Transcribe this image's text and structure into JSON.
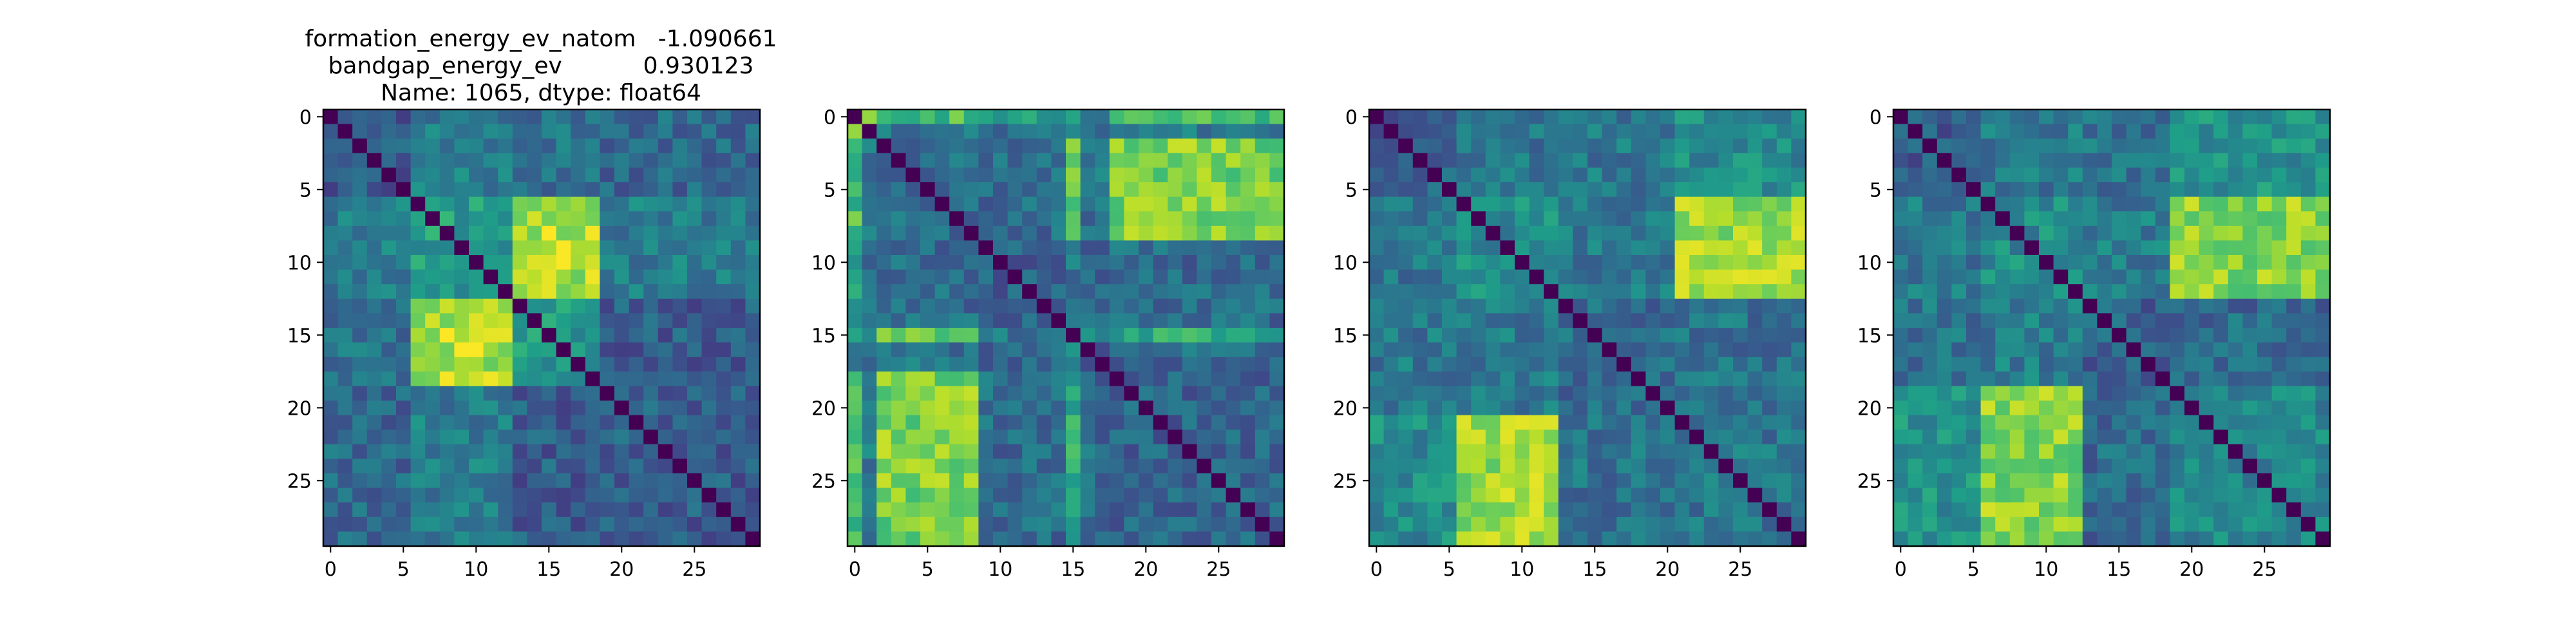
{
  "figure": {
    "title_lines": [
      "formation_energy_ev_natom   -1.090661",
      "bandgap_energy_ev           0.930123",
      "Name: 1065, dtype: float64"
    ]
  },
  "colors": {
    "viridis": [
      "#440154",
      "#482878",
      "#3e4a89",
      "#31688e",
      "#26828e",
      "#1f9e89",
      "#35b779",
      "#6ece58",
      "#b5de2b",
      "#fde725"
    ],
    "frame": "#000000"
  },
  "chart_data": [
    {
      "type": "heatmap",
      "title": "formation_energy_ev_natom   -1.090661\nbandgap_energy_ev           0.930123\nName: 1065, dtype: float64",
      "size": 30,
      "xticks": [
        0,
        5,
        10,
        15,
        20,
        25
      ],
      "yticks": [
        0,
        5,
        10,
        15,
        20,
        25
      ],
      "xlim": [
        -0.5,
        29.5
      ],
      "ylim": [
        29.5,
        -0.5
      ],
      "colormap": "viridis",
      "groups": [
        [
          0,
          5
        ],
        [
          6,
          12
        ],
        [
          13,
          18
        ],
        [
          19,
          29
        ]
      ],
      "group_base": [
        [
          0.28,
          0.42,
          0.38,
          0.34
        ],
        [
          0.42,
          0.55,
          0.88,
          0.42
        ],
        [
          0.38,
          0.88,
          0.55,
          0.3
        ],
        [
          0.34,
          0.42,
          0.3,
          0.3
        ]
      ]
    },
    {
      "type": "heatmap",
      "title": "",
      "size": 30,
      "xticks": [
        0,
        5,
        10,
        15,
        20,
        25
      ],
      "yticks": [
        0,
        5,
        10,
        15,
        20,
        25
      ],
      "xlim": [
        -0.5,
        29.5
      ],
      "ylim": [
        29.5,
        -0.5
      ],
      "colormap": "viridis",
      "groups": [
        [
          0,
          0
        ],
        [
          1,
          1
        ],
        [
          2,
          8
        ],
        [
          9,
          14
        ],
        [
          15,
          15
        ],
        [
          16,
          17
        ],
        [
          18,
          29
        ]
      ],
      "group_base": [
        [
          0.0,
          0.8,
          0.7,
          0.55,
          0.6,
          0.4,
          0.7
        ],
        [
          0.8,
          0.0,
          0.4,
          0.4,
          0.4,
          0.4,
          0.4
        ],
        [
          0.7,
          0.4,
          0.35,
          0.35,
          0.8,
          0.38,
          0.8
        ],
        [
          0.55,
          0.4,
          0.35,
          0.3,
          0.4,
          0.35,
          0.35
        ],
        [
          0.6,
          0.4,
          0.8,
          0.4,
          0.0,
          0.55,
          0.6
        ],
        [
          0.4,
          0.4,
          0.38,
          0.35,
          0.55,
          0.3,
          0.35
        ],
        [
          0.7,
          0.4,
          0.8,
          0.35,
          0.6,
          0.35,
          0.32
        ]
      ]
    },
    {
      "type": "heatmap",
      "title": "",
      "size": 30,
      "xticks": [
        0,
        5,
        10,
        15,
        20,
        25
      ],
      "yticks": [
        0,
        5,
        10,
        15,
        20,
        25
      ],
      "xlim": [
        -0.5,
        29.5
      ],
      "ylim": [
        29.5,
        -0.5
      ],
      "colormap": "viridis",
      "groups": [
        [
          0,
          5
        ],
        [
          6,
          12
        ],
        [
          13,
          20
        ],
        [
          21,
          29
        ]
      ],
      "group_base": [
        [
          0.3,
          0.4,
          0.4,
          0.48
        ],
        [
          0.4,
          0.48,
          0.4,
          0.85
        ],
        [
          0.4,
          0.4,
          0.35,
          0.38
        ],
        [
          0.48,
          0.85,
          0.38,
          0.4
        ]
      ]
    },
    {
      "type": "heatmap",
      "title": "",
      "size": 30,
      "xticks": [
        0,
        5,
        10,
        15,
        20,
        25
      ],
      "yticks": [
        0,
        5,
        10,
        15,
        20,
        25
      ],
      "xlim": [
        -0.5,
        29.5
      ],
      "ylim": [
        29.5,
        -0.5
      ],
      "colormap": "viridis",
      "groups": [
        [
          0,
          5
        ],
        [
          6,
          12
        ],
        [
          13,
          18
        ],
        [
          19,
          29
        ]
      ],
      "group_base": [
        [
          0.3,
          0.4,
          0.38,
          0.5
        ],
        [
          0.4,
          0.48,
          0.42,
          0.82
        ],
        [
          0.38,
          0.42,
          0.32,
          0.35
        ],
        [
          0.5,
          0.82,
          0.35,
          0.45
        ]
      ]
    }
  ]
}
